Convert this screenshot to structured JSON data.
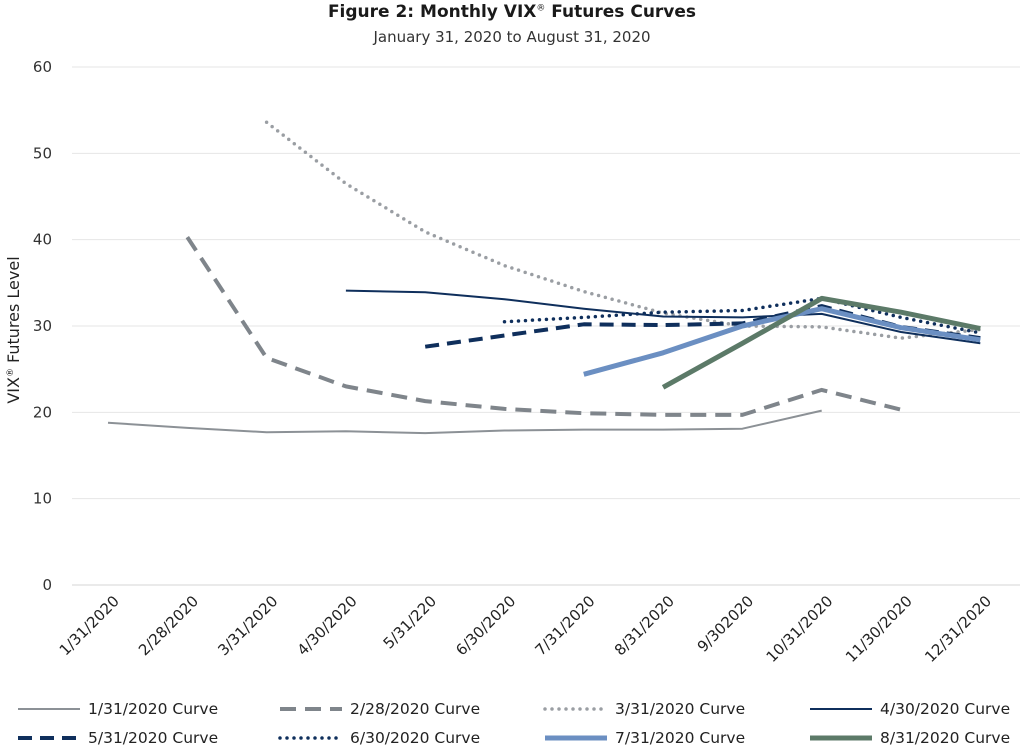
{
  "chart_data": {
    "type": "line",
    "title_prefix": "Figure 2: Monthly VIX",
    "title_mark": "®",
    "title_suffix": " Futures Curves",
    "subtitle": "January 31, 2020 to August 31, 2020",
    "ylabel_prefix": "VIX",
    "ylabel_mark": "®",
    "ylabel_suffix": " Futures Level",
    "ylim": [
      0,
      60
    ],
    "yticks": [
      0,
      10,
      20,
      30,
      40,
      50,
      60
    ],
    "grid": true,
    "legend_position": "bottom",
    "categories": [
      "1/31/2020",
      "2/28/2020",
      "3/31/2020",
      "4/30/2020",
      "5/31/220",
      "6/30/2020",
      "7/31/2020",
      "8/31/2020",
      "9/302020",
      "10/31/2020",
      "11/30/2020",
      "12/31/2020"
    ],
    "series": [
      {
        "name": "1/31/2020 Curve",
        "color": "#8c9196",
        "style": "solid-thin",
        "values": [
          18.8,
          18.2,
          17.7,
          17.8,
          17.6,
          17.9,
          18.0,
          18.0,
          18.1,
          20.2,
          null,
          null
        ]
      },
      {
        "name": "2/28/2020 Curve",
        "color": "#7f858b",
        "style": "dash",
        "values": [
          null,
          40.3,
          26.3,
          23.0,
          21.3,
          20.4,
          19.9,
          19.7,
          19.7,
          22.6,
          20.3,
          null
        ]
      },
      {
        "name": "3/31/2020 Curve",
        "color": "#9a9ea3",
        "style": "dot-gray",
        "values": [
          null,
          null,
          53.6,
          46.5,
          40.9,
          37.0,
          34.0,
          31.5,
          30.0,
          29.9,
          28.6,
          29.6
        ]
      },
      {
        "name": "4/30/2020 Curve",
        "color": "#0f2f5c",
        "style": "solid-navy",
        "values": [
          null,
          null,
          null,
          34.1,
          33.9,
          33.1,
          32.0,
          31.1,
          31.0,
          31.4,
          29.3,
          28.0
        ]
      },
      {
        "name": "5/31/2020 Curve",
        "color": "#0f2f5c",
        "style": "dash-navy",
        "values": [
          null,
          null,
          null,
          null,
          27.6,
          28.9,
          30.2,
          30.1,
          30.3,
          32.3,
          29.9,
          28.6
        ]
      },
      {
        "name": "6/30/2020 Curve",
        "color": "#0f2f5c",
        "style": "dot-navy",
        "values": [
          null,
          null,
          null,
          null,
          null,
          30.5,
          31.0,
          31.6,
          31.8,
          33.2,
          31.0,
          29.2
        ]
      },
      {
        "name": "7/31/2020 Curve",
        "color": "#6b8fc2",
        "style": "solid-thick-blue",
        "values": [
          null,
          null,
          null,
          null,
          null,
          null,
          24.4,
          26.9,
          30.0,
          32.0,
          29.8,
          28.4
        ]
      },
      {
        "name": "8/31/2020 Curve",
        "color": "#5c7a68",
        "style": "solid-thick-green",
        "values": [
          null,
          null,
          null,
          null,
          null,
          null,
          null,
          22.9,
          28.0,
          33.2,
          31.6,
          29.7
        ]
      }
    ]
  }
}
